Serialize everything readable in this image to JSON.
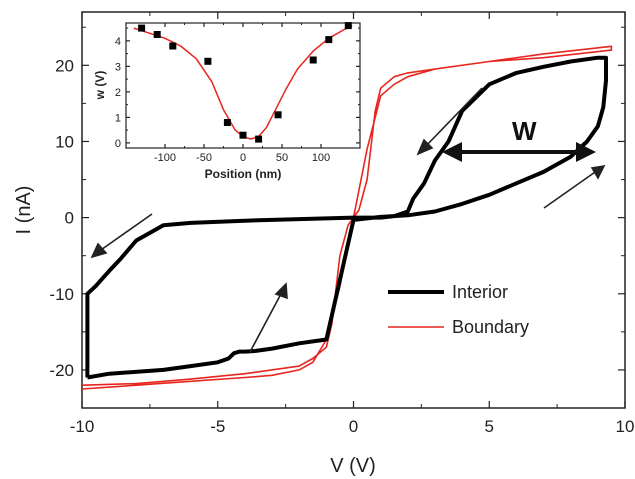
{
  "chart_data": [
    {
      "type": "line",
      "title": "",
      "xlabel": "V (V)",
      "ylabel": "I (nA)",
      "xlim": [
        -10,
        10
      ],
      "ylim": [
        -25,
        27
      ],
      "xticks": [
        -10,
        -5,
        0,
        5,
        10
      ],
      "yticks": [
        -20,
        -10,
        0,
        10,
        20
      ],
      "xtick_labels": [
        "-10",
        "-5",
        "0",
        "5",
        "10"
      ],
      "ytick_labels": [
        "-20",
        "-10",
        "0",
        "10",
        "20"
      ],
      "grid": false,
      "legend_position": "lower-right",
      "annotation": "W",
      "series": [
        {
          "name": "Interior",
          "color": "#000000",
          "x": [
            -9.8,
            -9.0,
            -7.0,
            -6.0,
            -5.0,
            -4.6,
            -4.4,
            -4.2,
            -4.0,
            -3.6,
            -3.0,
            -2.0,
            -1.0,
            0.0,
            1.0,
            2.0,
            3.0,
            4.0,
            5.0,
            6.0,
            7.0,
            8.0,
            8.6,
            9.0,
            9.2,
            9.3,
            9.3,
            9.0,
            8.0,
            7.0,
            6.0,
            5.0,
            4.0,
            3.5,
            3.0,
            2.6,
            2.2,
            2.0,
            1.5,
            1.0,
            0.0,
            -1.0,
            -2.0,
            -4.0,
            -6.0,
            -7.0,
            -8.0,
            -8.6,
            -9.0,
            -9.5,
            -9.8,
            -9.8
          ],
          "y": [
            -21.0,
            -20.5,
            -20.0,
            -19.5,
            -19.0,
            -18.5,
            -17.8,
            -17.6,
            -17.6,
            -17.5,
            -17.2,
            -16.5,
            -16.0,
            -0.3,
            0.1,
            0.3,
            0.8,
            1.8,
            3.0,
            4.5,
            6.0,
            8.0,
            10.0,
            12.0,
            14.5,
            18.0,
            21.0,
            21.0,
            20.5,
            19.8,
            19.0,
            17.5,
            14.0,
            10.0,
            7.5,
            4.5,
            2.5,
            0.8,
            0.2,
            0.0,
            0.0,
            -0.1,
            -0.2,
            -0.4,
            -0.7,
            -1.0,
            -3.0,
            -5.5,
            -7.0,
            -9.0,
            -10.0,
            -21.0
          ]
        },
        {
          "name": "Boundary",
          "color": "#e8251f",
          "x": [
            -10.0,
            -8.0,
            -6.0,
            -4.0,
            -3.0,
            -2.0,
            -1.5,
            -1.0,
            -0.5,
            0.0,
            0.5,
            1.0,
            1.5,
            2.0,
            3.0,
            5.0,
            7.0,
            9.5,
            9.5,
            7.0,
            5.0,
            3.0,
            2.0,
            1.5,
            1.0,
            0.8,
            0.5,
            0.2,
            0.0,
            -0.2,
            -0.5,
            -0.8,
            -1.0,
            -1.5,
            -2.0,
            -4.0,
            -6.0,
            -8.0,
            -10.0
          ],
          "y": [
            -22.5,
            -22.0,
            -21.5,
            -21.0,
            -20.7,
            -20.0,
            -19.0,
            -16.0,
            -9.0,
            0.0,
            9.0,
            16.0,
            17.5,
            18.5,
            19.5,
            20.5,
            21.5,
            22.5,
            22.0,
            21.0,
            20.5,
            19.5,
            19.0,
            18.5,
            17.0,
            14.0,
            5.0,
            1.0,
            0.0,
            -1.0,
            -5.0,
            -14.0,
            -17.0,
            -18.5,
            -19.5,
            -20.5,
            -21.2,
            -21.8,
            -22.0
          ]
        }
      ]
    },
    {
      "type": "line",
      "title": "",
      "xlabel": "Position (nm)",
      "ylabel": "w (V)",
      "xlim": [
        -150,
        150
      ],
      "ylim": [
        -0.2,
        4.7
      ],
      "xticks": [
        -100,
        -50,
        0,
        50,
        100
      ],
      "yticks": [
        0,
        1,
        2,
        3,
        4
      ],
      "xtick_labels": [
        "-100",
        "-50",
        "0",
        "50",
        "100"
      ],
      "ytick_labels": [
        "0",
        "1",
        "2",
        "3",
        "4"
      ],
      "grid": false,
      "series": [
        {
          "type": "scatter",
          "color": "#000000",
          "x": [
            -130,
            -110,
            -90,
            -45,
            -20,
            0,
            20,
            45,
            90,
            110,
            135
          ],
          "y": [
            4.5,
            4.25,
            3.8,
            3.2,
            0.8,
            0.3,
            0.15,
            1.1,
            3.25,
            4.05,
            4.6
          ]
        },
        {
          "type": "line",
          "color": "#e8251f",
          "x": [
            -140,
            -120,
            -100,
            -80,
            -60,
            -40,
            -25,
            -10,
            0,
            10,
            20,
            30,
            40,
            55,
            70,
            90,
            110,
            130,
            140
          ],
          "y": [
            4.5,
            4.3,
            4.1,
            3.8,
            3.3,
            2.4,
            1.3,
            0.5,
            0.25,
            0.15,
            0.25,
            0.6,
            1.2,
            2.1,
            2.9,
            3.6,
            4.1,
            4.45,
            4.6
          ]
        }
      ]
    }
  ]
}
